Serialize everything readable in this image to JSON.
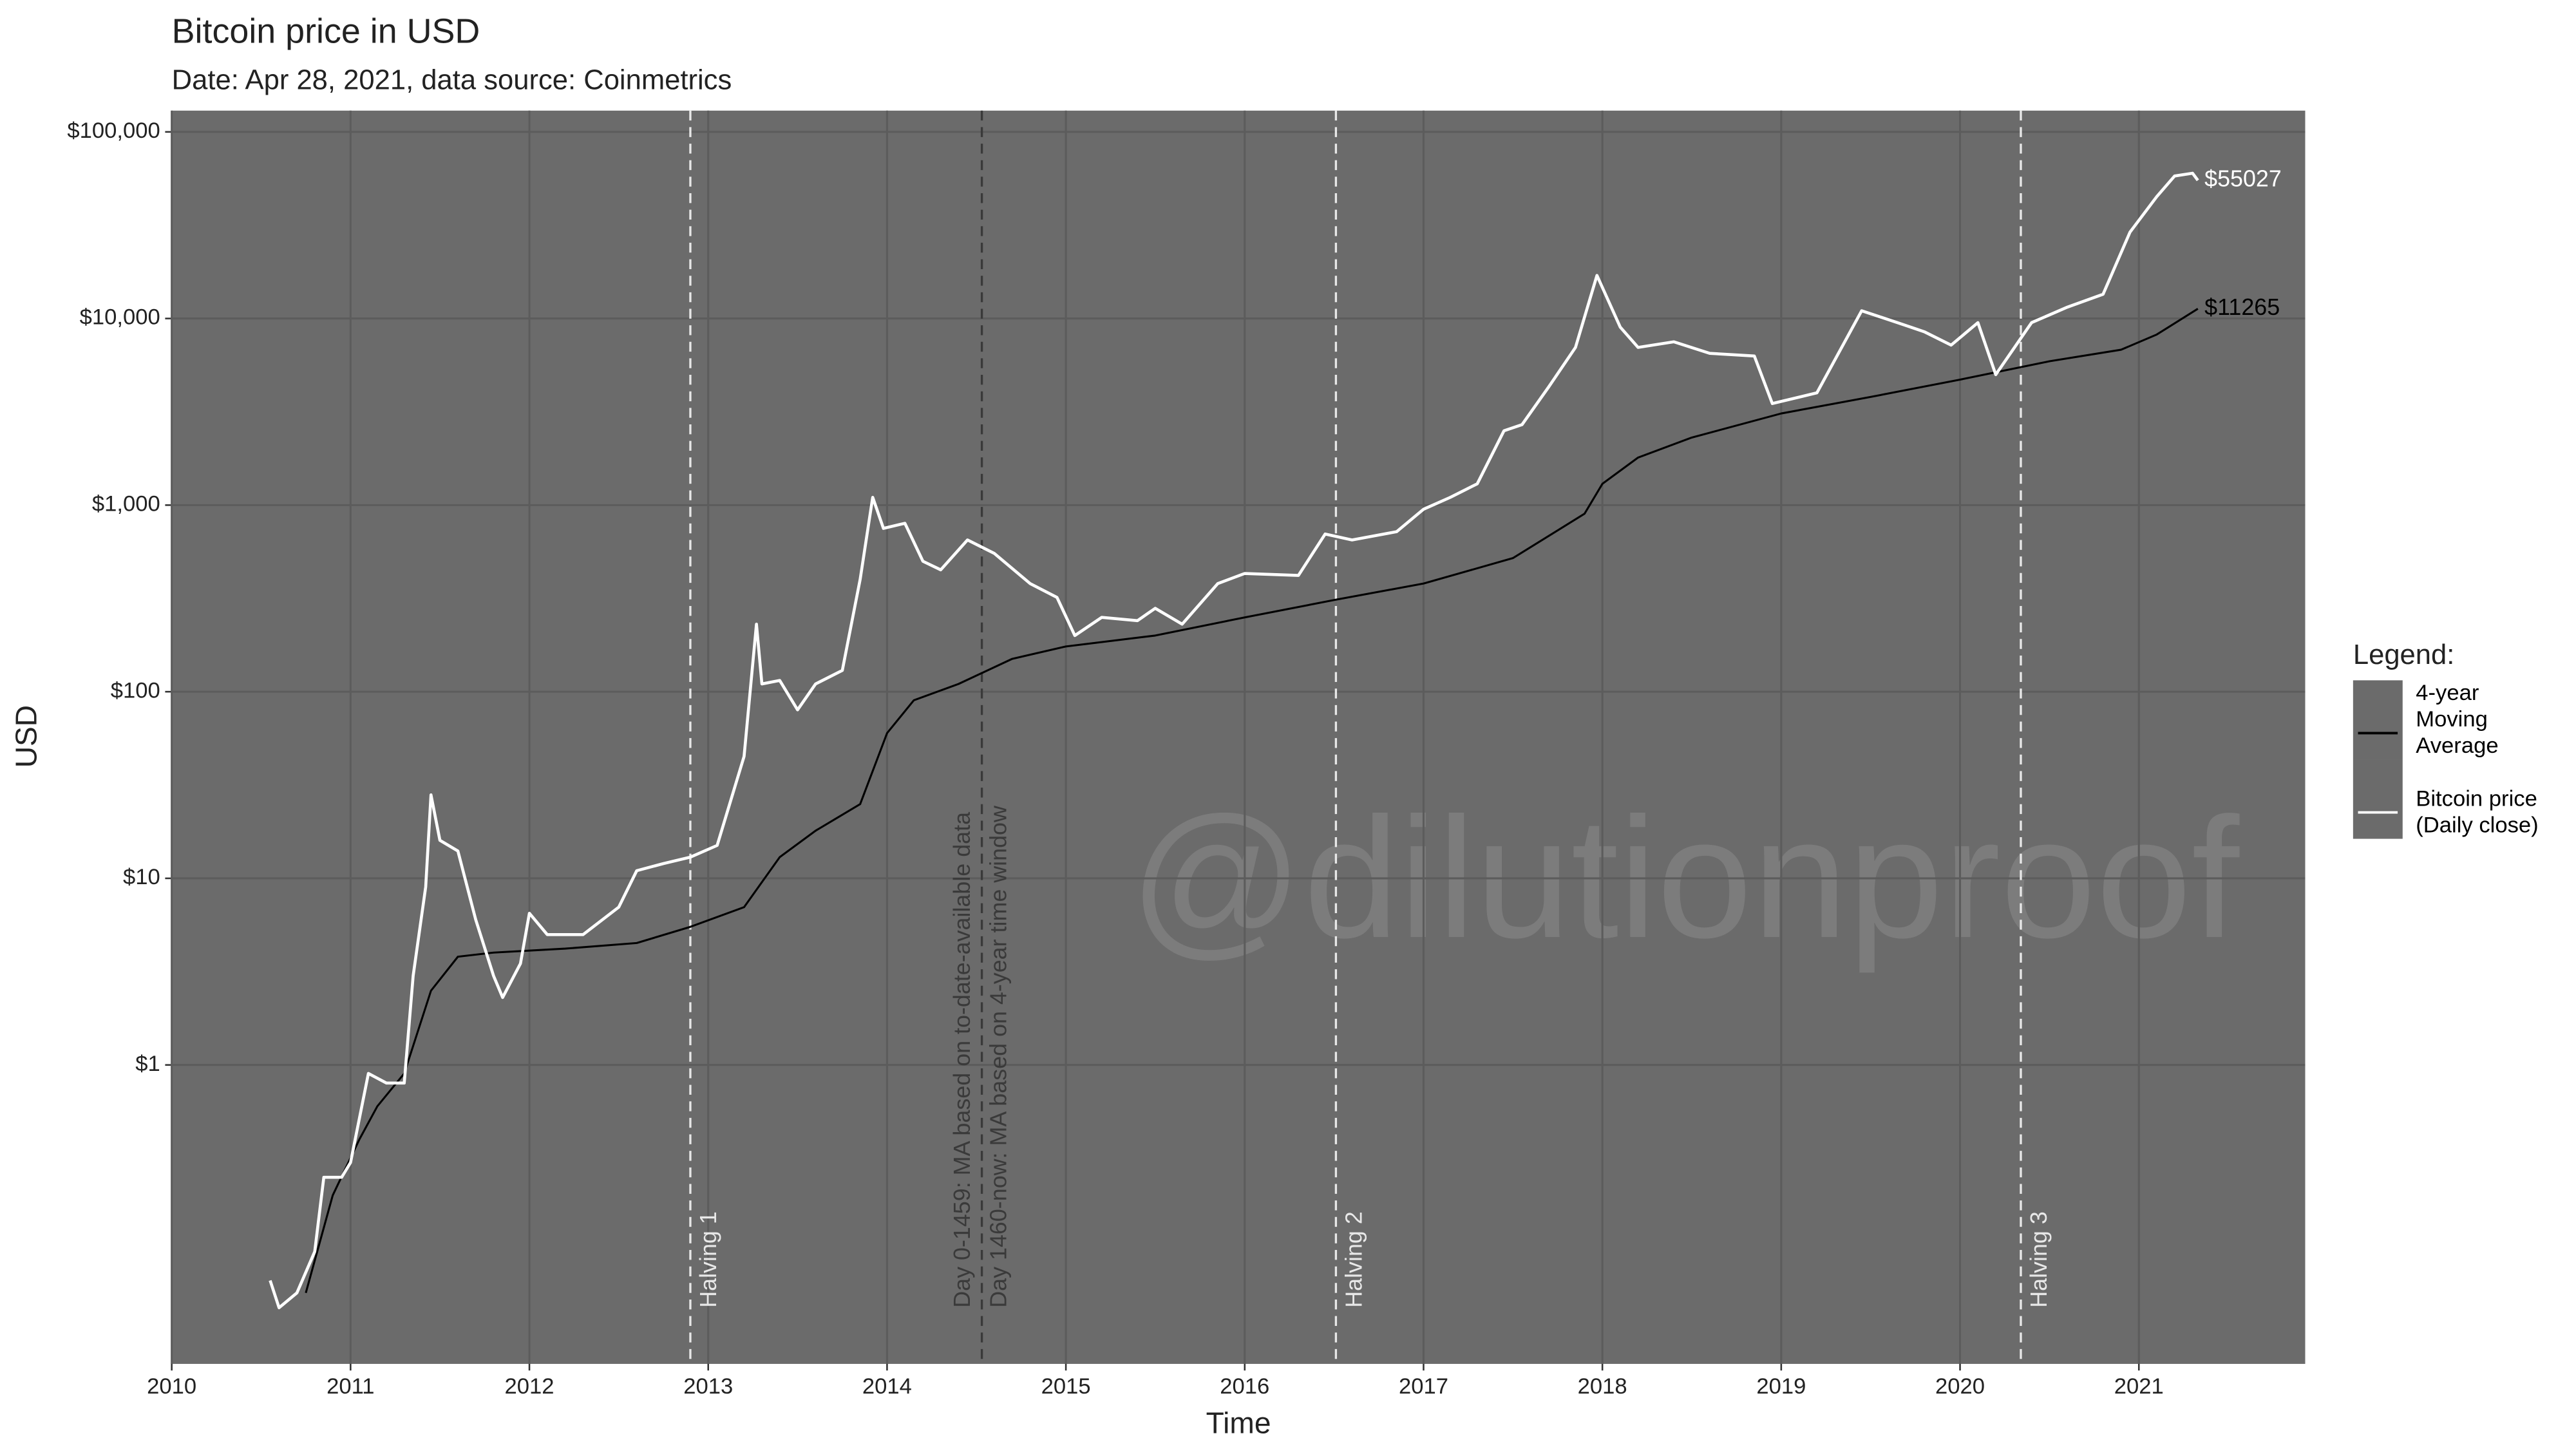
{
  "chart_data": {
    "type": "line",
    "title": "Bitcoin price in USD",
    "subtitle": "Date: Apr 28, 2021, data source: Coinmetrics",
    "x_label": "Time",
    "y_label": "USD",
    "watermark": "@dilutionproof",
    "legend_title": "Legend:",
    "log_y": true,
    "grid": true,
    "background": "#6b6b6b",
    "grid_color": "#5c5c5c",
    "xlim": [
      2010,
      2021.93
    ],
    "xticks": [
      2010,
      2011,
      2012,
      2013,
      2014,
      2015,
      2016,
      2017,
      2018,
      2019,
      2020,
      2021
    ],
    "ylim": [
      0.025,
      130000
    ],
    "yticks": [
      {
        "value": 1,
        "label": "$1"
      },
      {
        "value": 10,
        "label": "$10"
      },
      {
        "value": 100,
        "label": "$100"
      },
      {
        "value": 1000,
        "label": "$1,000"
      },
      {
        "value": 10000,
        "label": "$10,000"
      },
      {
        "value": 100000,
        "label": "$100,000"
      }
    ],
    "vlines": [
      {
        "x": 2012.9,
        "color": "#e8e8e8",
        "labels": [
          "Halving 1"
        ]
      },
      {
        "x": 2014.53,
        "color": "#3a3a3a",
        "labels": [
          "Day 0-1459: MA based on to-date-available data",
          "Day 1460-now: MA based on 4-year time window"
        ]
      },
      {
        "x": 2016.51,
        "color": "#e8e8e8",
        "labels": [
          "Halving 2"
        ]
      },
      {
        "x": 2020.34,
        "color": "#e8e8e8",
        "labels": [
          "Halving 3"
        ]
      }
    ],
    "series": [
      {
        "name": "4-year Moving Average",
        "color": "#000000",
        "end_label": "$11265",
        "x": [
          2010.75,
          2010.9,
          2011.05,
          2011.15,
          2011.3,
          2011.45,
          2011.6,
          2011.8,
          2012.2,
          2012.6,
          2012.9,
          2013.2,
          2013.4,
          2013.6,
          2013.85,
          2014.0,
          2014.15,
          2014.4,
          2014.7,
          2015.0,
          2015.5,
          2016.0,
          2016.5,
          2017.0,
          2017.5,
          2017.9,
          2018.0,
          2018.2,
          2018.5,
          2019.0,
          2019.5,
          2020.0,
          2020.5,
          2020.9,
          2021.1,
          2021.33
        ],
        "values": [
          0.06,
          0.2,
          0.4,
          0.6,
          0.9,
          2.5,
          3.8,
          4.0,
          4.2,
          4.5,
          5.5,
          7,
          13,
          18,
          25,
          60,
          90,
          110,
          150,
          175,
          200,
          250,
          310,
          380,
          520,
          900,
          1300,
          1800,
          2300,
          3100,
          3800,
          4700,
          5900,
          6800,
          8200,
          11265
        ]
      },
      {
        "name": "Bitcoin price (Daily close)",
        "color": "#ffffff",
        "end_label": "$55027",
        "x": [
          2010.55,
          2010.6,
          2010.7,
          2010.8,
          2010.85,
          2010.95,
          2011.0,
          2011.1,
          2011.2,
          2011.3,
          2011.35,
          2011.42,
          2011.45,
          2011.5,
          2011.6,
          2011.7,
          2011.8,
          2011.85,
          2011.95,
          2012.0,
          2012.1,
          2012.3,
          2012.5,
          2012.6,
          2012.75,
          2012.9,
          2013.05,
          2013.2,
          2013.27,
          2013.3,
          2013.4,
          2013.5,
          2013.6,
          2013.75,
          2013.85,
          2013.92,
          2013.98,
          2014.1,
          2014.2,
          2014.3,
          2014.45,
          2014.6,
          2014.8,
          2014.95,
          2015.05,
          2015.2,
          2015.4,
          2015.5,
          2015.65,
          2015.85,
          2016.0,
          2016.3,
          2016.45,
          2016.6,
          2016.85,
          2017.0,
          2017.15,
          2017.3,
          2017.45,
          2017.55,
          2017.7,
          2017.85,
          2017.97,
          2018.1,
          2018.2,
          2018.4,
          2018.6,
          2018.85,
          2018.95,
          2019.2,
          2019.45,
          2019.65,
          2019.8,
          2019.95,
          2020.1,
          2020.2,
          2020.4,
          2020.6,
          2020.8,
          2020.95,
          2021.1,
          2021.2,
          2021.3,
          2021.33
        ],
        "values": [
          0.07,
          0.05,
          0.06,
          0.1,
          0.25,
          0.25,
          0.3,
          0.9,
          0.8,
          0.8,
          3,
          9,
          28,
          16,
          14,
          6,
          3,
          2.3,
          3.5,
          6.5,
          5,
          5,
          7,
          11,
          12,
          13,
          15,
          45,
          230,
          110,
          115,
          80,
          110,
          130,
          400,
          1100,
          750,
          800,
          500,
          450,
          650,
          550,
          380,
          320,
          200,
          250,
          240,
          280,
          230,
          380,
          430,
          420,
          700,
          650,
          720,
          950,
          1100,
          1300,
          2500,
          2700,
          4300,
          7000,
          17000,
          9000,
          7000,
          7500,
          6500,
          6300,
          3500,
          4000,
          11000,
          9500,
          8500,
          7200,
          9500,
          5000,
          9500,
          11500,
          13500,
          29000,
          45000,
          58000,
          60000,
          55027
        ]
      }
    ]
  }
}
